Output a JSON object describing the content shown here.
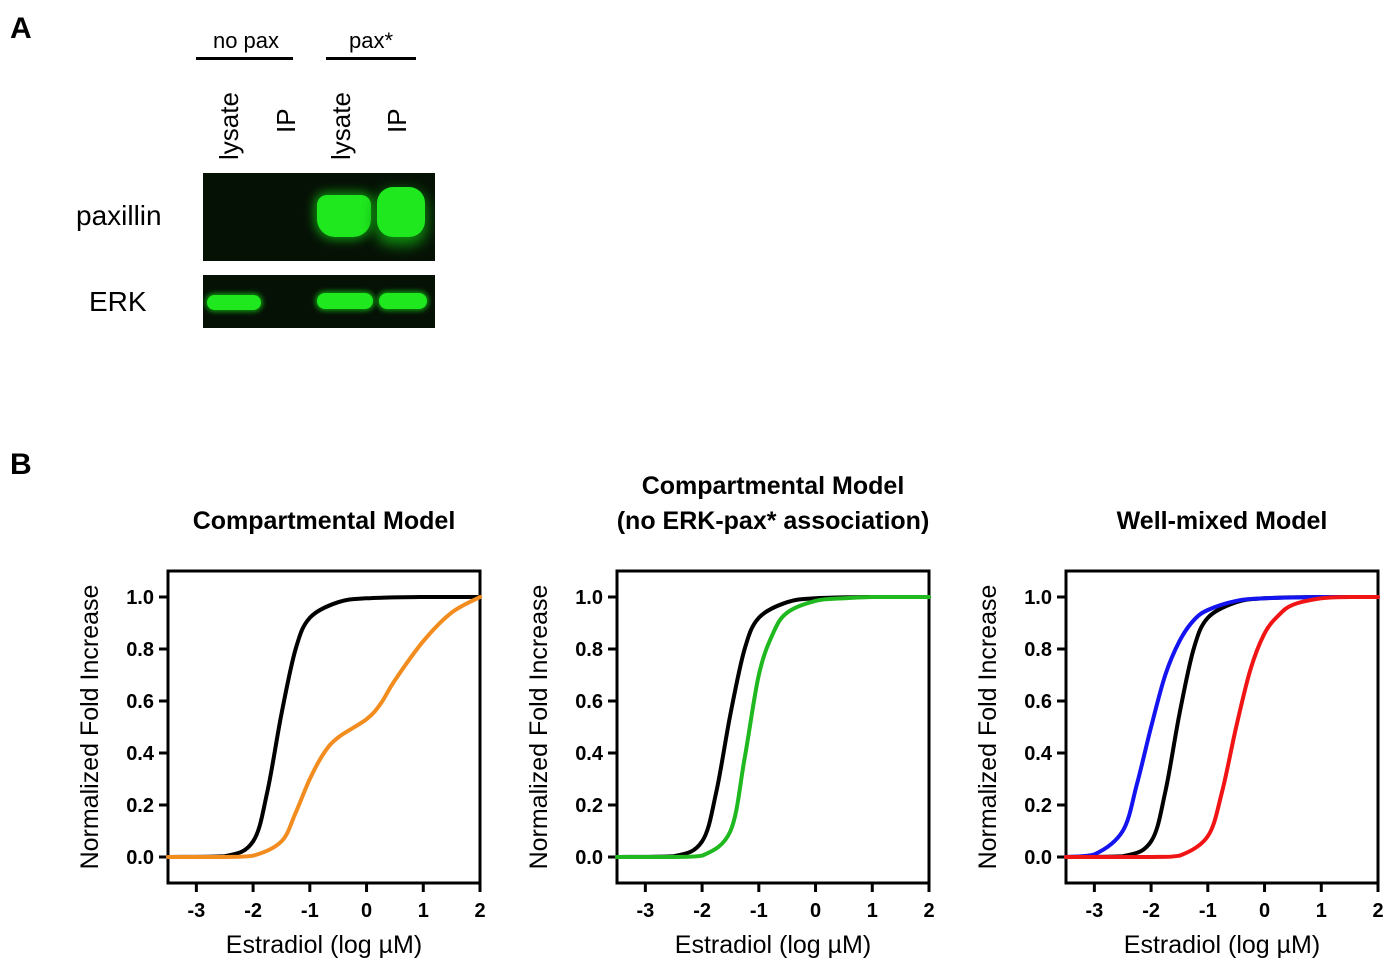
{
  "panel_a": {
    "letter": "A",
    "group_labels": [
      "no pax",
      "pax*"
    ],
    "lane_labels": [
      "lysate",
      "IP",
      "lysate",
      "IP"
    ],
    "row_labels": [
      "paxillin",
      "ERK"
    ]
  },
  "panel_b": {
    "letter": "B"
  },
  "chart_data": [
    {
      "type": "line",
      "title": "Compartmental Model",
      "xlabel": "Estradiol (log µM)",
      "ylabel": "Normalized Fold Increase",
      "xlim": [
        -3.5,
        2
      ],
      "ylim": [
        -0.1,
        1.1
      ],
      "xticks": [
        "-3",
        "-2",
        "-1",
        "0",
        "1",
        "2"
      ],
      "yticks": [
        "0.0",
        "0.2",
        "0.4",
        "0.6",
        "0.8",
        "1.0"
      ],
      "grid": false,
      "series": [
        {
          "color": "#000000",
          "x": [
            -3.5,
            -2.5,
            -2,
            -1.75,
            -1.5,
            -1.25,
            -1,
            -0.5,
            0,
            1,
            2
          ],
          "y": [
            0,
            0.003,
            0.06,
            0.25,
            0.55,
            0.8,
            0.92,
            0.98,
            0.995,
            1.0,
            1.0
          ]
        },
        {
          "color": "#f28c1f",
          "x": [
            -3.5,
            -2.5,
            -2,
            -1.5,
            -1.25,
            -1,
            -0.75,
            -0.5,
            0,
            0.25,
            0.5,
            1,
            1.5,
            2
          ],
          "y": [
            0,
            0,
            0.005,
            0.06,
            0.17,
            0.3,
            0.4,
            0.46,
            0.53,
            0.59,
            0.68,
            0.83,
            0.94,
            1.0
          ]
        }
      ]
    },
    {
      "type": "line",
      "title": "Compartmental Model\n(no ERK-pax* association)",
      "title_lines": [
        "Compartmental Model",
        "(no ERK-pax* association)"
      ],
      "xlabel": "Estradiol (log µM)",
      "ylabel": "Normalized Fold Increase",
      "xlim": [
        -3.5,
        2
      ],
      "ylim": [
        -0.1,
        1.1
      ],
      "xticks": [
        "-3",
        "-2",
        "-1",
        "0",
        "1",
        "2"
      ],
      "yticks": [
        "0.0",
        "0.2",
        "0.4",
        "0.6",
        "0.8",
        "1.0"
      ],
      "grid": false,
      "series": [
        {
          "color": "#000000",
          "x": [
            -3.5,
            -2.5,
            -2,
            -1.75,
            -1.5,
            -1.25,
            -1,
            -0.5,
            0,
            1,
            2
          ],
          "y": [
            0,
            0.003,
            0.06,
            0.25,
            0.55,
            0.8,
            0.92,
            0.98,
            0.995,
            1.0,
            1.0
          ]
        },
        {
          "color": "#1fb81f",
          "x": [
            -3.5,
            -2.5,
            -2,
            -1.5,
            -1.25,
            -1,
            -0.75,
            -0.5,
            0,
            0.5,
            1,
            2
          ],
          "y": [
            0,
            0,
            0.005,
            0.1,
            0.38,
            0.7,
            0.86,
            0.94,
            0.985,
            0.995,
            1.0,
            1.0
          ]
        }
      ]
    },
    {
      "type": "line",
      "title": "Well-mixed Model",
      "xlabel": "Estradiol (log µM)",
      "ylabel": "Normalized Fold Increase",
      "xlim": [
        -3.5,
        2
      ],
      "ylim": [
        -0.1,
        1.1
      ],
      "xticks": [
        "-3",
        "-2",
        "-1",
        "0",
        "1",
        "2"
      ],
      "yticks": [
        "0.0",
        "0.2",
        "0.4",
        "0.6",
        "0.8",
        "1.0"
      ],
      "grid": false,
      "series": [
        {
          "color": "#000000",
          "x": [
            -3.5,
            -2.5,
            -2,
            -1.75,
            -1.5,
            -1.25,
            -1,
            -0.5,
            0,
            1,
            2
          ],
          "y": [
            0,
            0.003,
            0.06,
            0.25,
            0.55,
            0.8,
            0.92,
            0.98,
            0.995,
            1.0,
            1.0
          ]
        },
        {
          "color": "#1414f0",
          "x": [
            -3.5,
            -3,
            -2.5,
            -2.25,
            -2,
            -1.75,
            -1.5,
            -1.25,
            -1,
            -0.5,
            0,
            1,
            2
          ],
          "y": [
            0,
            0.01,
            0.1,
            0.28,
            0.5,
            0.7,
            0.83,
            0.91,
            0.95,
            0.985,
            0.995,
            1.0,
            1.0
          ]
        },
        {
          "color": "#f01414",
          "x": [
            -3.5,
            -2,
            -1.5,
            -1,
            -0.75,
            -0.5,
            -0.25,
            0,
            0.25,
            0.5,
            1,
            1.5,
            2
          ],
          "y": [
            0,
            0,
            0.005,
            0.08,
            0.25,
            0.5,
            0.72,
            0.86,
            0.93,
            0.97,
            0.995,
            1.0,
            1.0
          ]
        }
      ]
    }
  ]
}
